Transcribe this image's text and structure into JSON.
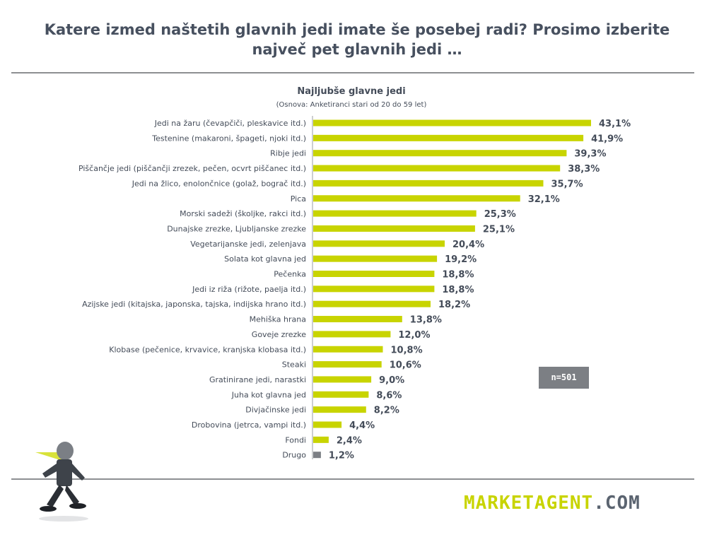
{
  "page": {
    "title_line1": "Katere izmed naštetih glavnih jedi imate še posebej radi? Prosimo izberite",
    "title_line2": "največ pet glavnih jedi …"
  },
  "sample": {
    "label": "n=501"
  },
  "brand": {
    "logo_part1": "MARKETAGENT",
    "logo_part2": ".COM",
    "accent_color": "#c8d400",
    "muted_color": "#7c7f84"
  },
  "chart_data": {
    "type": "bar",
    "orientation": "horizontal",
    "title": "Najljubše glavne jedi",
    "subtitle": "(Osnova: Anketiranci stari od 20 do 59 let)",
    "unit": "%",
    "xlim": [
      0,
      43.1
    ],
    "grid": false,
    "categories": [
      "Jedi na žaru (čevapčiči, pleskavice itd.)",
      "Testenine (makaroni, špageti, njoki itd.)",
      "Ribje jedi",
      "Piščančje jedi (piščančji zrezek, pečen, ocvrt piščanec itd.)",
      "Jedi na žlico, enolončnice (golaž, bograč itd.)",
      "Pica",
      "Morski sadeži (školjke, rakci itd.)",
      "Dunajske zrezke, Ljubljanske zrezke",
      "Vegetarijanske jedi, zelenjava",
      "Solata kot glavna jed",
      "Pečenka",
      "Jedi iz riža (rižote, paelja itd.)",
      "Azijske jedi (kitajska, japonska, tajska, indijska hrano itd.)",
      "Mehiška hrana",
      "Goveje zrezke",
      "Klobase (pečenice, krvavice, kranjska klobasa itd.)",
      "Steaki",
      "Gratinirane jedi, narastki",
      "Juha kot glavna jed",
      "Divjačinske jedi",
      "Drobovina (jetrca, vampi itd.)",
      "Fondi",
      "Drugo"
    ],
    "values": [
      43.1,
      41.9,
      39.3,
      38.3,
      35.7,
      32.1,
      25.3,
      25.1,
      20.4,
      19.2,
      18.8,
      18.8,
      18.2,
      13.8,
      12.0,
      10.8,
      10.6,
      9.0,
      8.6,
      8.2,
      4.4,
      2.4,
      1.2
    ],
    "value_labels": [
      "43,1%",
      "41,9%",
      "39,3%",
      "38,3%",
      "35,7%",
      "32,1%",
      "25,3%",
      "25,1%",
      "20,4%",
      "19,2%",
      "18,8%",
      "18,8%",
      "18,2%",
      "13,8%",
      "12,0%",
      "10,8%",
      "10,6%",
      "9,0%",
      "8,6%",
      "8,2%",
      "4,4%",
      "2,4%",
      "1,2%"
    ],
    "bar_color": "#c8d400",
    "other_bar_color": "#7c7f84"
  }
}
